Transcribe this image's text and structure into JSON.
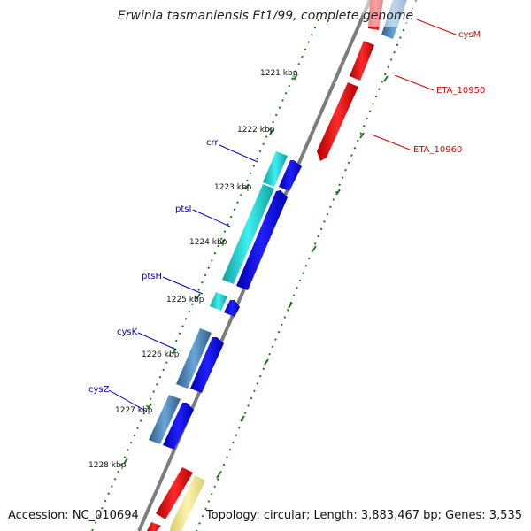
{
  "title": "Erwinia tasmaniensis Et1/99, complete genome",
  "footer": {
    "accession": "Accession: NC_010694",
    "summary": "Topology: circular; Length: 3,883,467 bp; Genes: 3,535"
  },
  "colors": {
    "backbone": "#888888",
    "tick": "#1a7a1a",
    "label_blue": "#0000cc",
    "label_red": "#dd0000",
    "cyan": "#22cccc",
    "blue": "#0000ee",
    "steel": "#4682b4",
    "red": "#ee0000",
    "yellow": "#f0e68c"
  },
  "ruler_labels": [
    "1221 kbp",
    "1222 kbp",
    "1223 kbp",
    "1224 kbp",
    "1225 kbp",
    "1226 kbp",
    "1227 kbp",
    "1228 kbp"
  ],
  "gene_labels_left": [
    "crr",
    "ptsI",
    "ptsH",
    "cysK",
    "cysZ"
  ],
  "gene_labels_right": [
    "cysM",
    "ETA_10950",
    "ETA_10960"
  ]
}
